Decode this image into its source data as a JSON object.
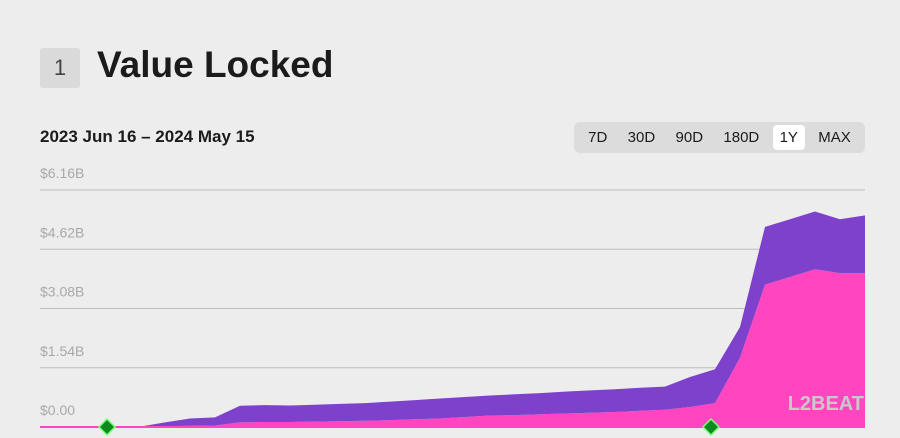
{
  "header": {
    "rank": "1",
    "title": "Value Locked"
  },
  "date_range": "2023 Jun 16 – 2024 May 15",
  "ranges": [
    "7D",
    "30D",
    "90D",
    "180D",
    "1Y",
    "MAX"
  ],
  "active_range": "1Y",
  "watermark": "L2BEAT",
  "chart_data": {
    "type": "area",
    "stacked": true,
    "series": [
      {
        "color": "#ff46c0",
        "values": [
          0,
          0,
          0,
          0,
          0,
          20000000,
          30000000,
          40000000,
          120000000,
          130000000,
          130000000,
          140000000,
          150000000,
          160000000,
          180000000,
          200000000,
          220000000,
          260000000,
          300000000,
          310000000,
          330000000,
          350000000,
          370000000,
          390000000,
          420000000,
          450000000,
          520000000,
          620000000,
          1800000000,
          3700000000,
          3900000000,
          4100000000,
          4000000000,
          4000000000
        ]
      },
      {
        "color": "#7e41cc",
        "values": [
          0,
          0,
          0,
          0,
          10000000,
          100000000,
          190000000,
          210000000,
          430000000,
          440000000,
          430000000,
          440000000,
          450000000,
          460000000,
          480000000,
          500000000,
          520000000,
          520000000,
          520000000,
          540000000,
          550000000,
          570000000,
          580000000,
          590000000,
          600000000,
          600000000,
          780000000,
          880000000,
          800000000,
          1500000000,
          1500000000,
          1500000000,
          1400000000,
          1500000000
        ]
      }
    ],
    "ylim": [
      0,
      6160000000
    ],
    "yticks": [
      {
        "value": 0,
        "label": "$0.00"
      },
      {
        "value": 1540000000,
        "label": "$1.54B"
      },
      {
        "value": 3080000000,
        "label": "$3.08B"
      },
      {
        "value": 4620000000,
        "label": "$4.62B"
      },
      {
        "value": 6160000000,
        "label": "$6.16B"
      }
    ],
    "grid": true
  }
}
